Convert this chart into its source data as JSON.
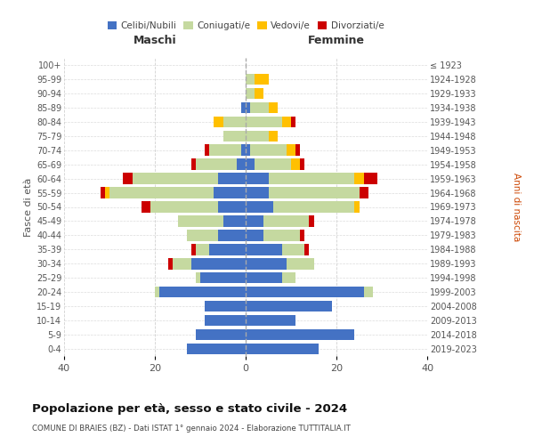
{
  "age_groups": [
    "0-4",
    "5-9",
    "10-14",
    "15-19",
    "20-24",
    "25-29",
    "30-34",
    "35-39",
    "40-44",
    "45-49",
    "50-54",
    "55-59",
    "60-64",
    "65-69",
    "70-74",
    "75-79",
    "80-84",
    "85-89",
    "90-94",
    "95-99",
    "100+"
  ],
  "birth_years": [
    "2019-2023",
    "2014-2018",
    "2009-2013",
    "2004-2008",
    "1999-2003",
    "1994-1998",
    "1989-1993",
    "1984-1988",
    "1979-1983",
    "1974-1978",
    "1969-1973",
    "1964-1968",
    "1959-1963",
    "1954-1958",
    "1949-1953",
    "1944-1948",
    "1939-1943",
    "1934-1938",
    "1929-1933",
    "1924-1928",
    "≤ 1923"
  ],
  "colors": {
    "celibi": "#4472c4",
    "coniugati": "#c5d9a0",
    "vedovi": "#ffc000",
    "divorziati": "#cc0000"
  },
  "maschi": {
    "celibi": [
      13,
      11,
      9,
      9,
      19,
      10,
      12,
      8,
      6,
      5,
      6,
      7,
      6,
      2,
      1,
      0,
      0,
      1,
      0,
      0,
      0
    ],
    "coniugati": [
      0,
      0,
      0,
      0,
      1,
      1,
      4,
      3,
      7,
      10,
      15,
      23,
      19,
      9,
      7,
      5,
      5,
      0,
      0,
      0,
      0
    ],
    "vedovi": [
      0,
      0,
      0,
      0,
      0,
      0,
      0,
      0,
      0,
      0,
      0,
      1,
      0,
      0,
      0,
      0,
      2,
      0,
      0,
      0,
      0
    ],
    "divorziati": [
      0,
      0,
      0,
      0,
      0,
      0,
      1,
      1,
      0,
      0,
      2,
      1,
      2,
      1,
      1,
      0,
      0,
      0,
      0,
      0,
      0
    ]
  },
  "femmine": {
    "celibi": [
      16,
      24,
      11,
      19,
      26,
      8,
      9,
      8,
      4,
      4,
      6,
      5,
      5,
      2,
      1,
      0,
      0,
      1,
      0,
      0,
      0
    ],
    "coniugati": [
      0,
      0,
      0,
      0,
      2,
      3,
      6,
      5,
      8,
      10,
      18,
      20,
      19,
      8,
      8,
      5,
      8,
      4,
      2,
      2,
      0
    ],
    "vedovi": [
      0,
      0,
      0,
      0,
      0,
      0,
      0,
      0,
      0,
      0,
      1,
      0,
      2,
      2,
      2,
      2,
      2,
      2,
      2,
      3,
      0
    ],
    "divorziati": [
      0,
      0,
      0,
      0,
      0,
      0,
      0,
      1,
      1,
      1,
      0,
      2,
      3,
      1,
      1,
      0,
      1,
      0,
      0,
      0,
      0
    ]
  },
  "xlim": 40,
  "title": "Popolazione per età, sesso e stato civile - 2024",
  "subtitle": "COMUNE DI BRAIES (BZ) - Dati ISTAT 1° gennaio 2024 - Elaborazione TUTTITALIA.IT",
  "ylabel_left": "Fasce di età",
  "ylabel_right": "Anni di nascita",
  "xlabel_left": "Maschi",
  "xlabel_right": "Femmine",
  "legend_labels": [
    "Celibi/Nubili",
    "Coniugati/e",
    "Vedovi/e",
    "Divorziati/e"
  ],
  "background_color": "#ffffff",
  "grid_color": "#cccccc"
}
